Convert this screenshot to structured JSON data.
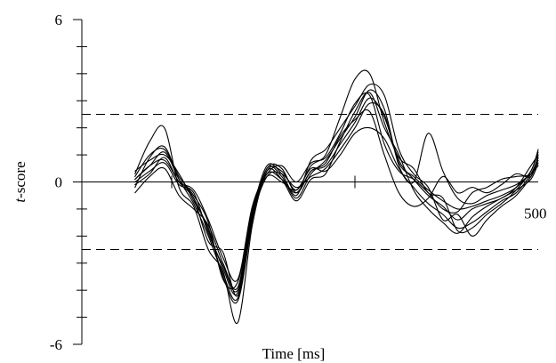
{
  "chart_data": {
    "type": "line",
    "xlabel": "Time [ms]",
    "ylabel_italic": "t",
    "ylabel_rest": "-score",
    "xlim": [
      -50,
      500
    ],
    "ylim": [
      -6,
      6
    ],
    "y_ticks_major": [
      -6,
      0,
      6
    ],
    "y_tick_labels": [
      "-6",
      "0",
      "6"
    ],
    "y_ticks_minor": [
      -5,
      -4,
      -3,
      -2,
      -1,
      1,
      2,
      3,
      4,
      5
    ],
    "x_ticks": [
      0,
      250
    ],
    "x_end_label": "500",
    "thresholds": [
      2.5,
      -2.5
    ],
    "grid": false,
    "series": [
      {
        "x": [
          -50,
          -30,
          -10,
          10,
          30,
          50,
          70,
          90,
          110,
          130,
          150,
          170,
          190,
          210,
          230,
          250,
          270,
          290,
          310,
          330,
          350,
          370,
          390,
          410,
          430,
          450,
          470,
          490,
          500
        ],
        "y": [
          0.1,
          0.6,
          0.8,
          0,
          -0.6,
          -1.8,
          -3.2,
          -4.1,
          -1.2,
          0.3,
          0.1,
          -0.4,
          0.4,
          0.6,
          1.4,
          2.2,
          3.1,
          2.4,
          0.8,
          0.1,
          -0.5,
          -0.9,
          -1.4,
          -1.0,
          -0.8,
          -0.6,
          -0.2,
          0.6,
          1.0
        ]
      },
      {
        "x": [
          -50,
          -30,
          -10,
          10,
          30,
          50,
          70,
          90,
          110,
          130,
          150,
          170,
          190,
          210,
          230,
          250,
          270,
          290,
          310,
          330,
          350,
          370,
          390,
          410,
          430,
          450,
          470,
          490,
          500
        ],
        "y": [
          -0.2,
          0.9,
          1.3,
          0.1,
          -0.8,
          -2.0,
          -3.4,
          -4.3,
          -1.4,
          0.5,
          0.2,
          -0.6,
          0.3,
          0.8,
          1.6,
          2.4,
          3.4,
          2.7,
          0.6,
          -0.2,
          -0.8,
          -1.2,
          -1.7,
          -1.5,
          -1.1,
          -0.7,
          -0.4,
          0.3,
          0.9
        ]
      },
      {
        "x": [
          -50,
          -30,
          -10,
          10,
          30,
          50,
          70,
          90,
          110,
          130,
          150,
          170,
          190,
          210,
          230,
          250,
          270,
          290,
          310,
          330,
          350,
          370,
          390,
          410,
          430,
          450,
          470,
          490,
          500
        ],
        "y": [
          0.3,
          1.5,
          2.0,
          -0.2,
          -0.9,
          -2.5,
          -3.3,
          -5.2,
          -1.6,
          0.4,
          0.4,
          -0.3,
          0.6,
          1.0,
          2.4,
          3.8,
          4.0,
          2.2,
          0.9,
          0.5,
          -0.4,
          -0.6,
          -1.8,
          -1.7,
          -1.2,
          -0.8,
          -0.3,
          0.4,
          1.1
        ]
      },
      {
        "x": [
          -50,
          -30,
          -10,
          10,
          30,
          50,
          70,
          90,
          110,
          130,
          150,
          170,
          190,
          210,
          230,
          250,
          270,
          290,
          310,
          330,
          350,
          370,
          390,
          410,
          430,
          450,
          470,
          490,
          500
        ],
        "y": [
          -0.4,
          0.2,
          0.5,
          -0.5,
          -1.0,
          -1.6,
          -3.0,
          -3.9,
          -1.0,
          0.2,
          0.0,
          -0.3,
          0.5,
          0.4,
          1.0,
          1.8,
          2.0,
          1.6,
          0.5,
          0.0,
          1.8,
          0.4,
          -0.6,
          -0.8,
          -0.5,
          -0.3,
          -0.1,
          0.3,
          0.6
        ]
      },
      {
        "x": [
          -50,
          -30,
          -10,
          10,
          30,
          50,
          70,
          90,
          110,
          130,
          150,
          170,
          190,
          210,
          230,
          250,
          270,
          290,
          310,
          330,
          350,
          370,
          390,
          410,
          430,
          450,
          470,
          490,
          500
        ],
        "y": [
          0.2,
          1.0,
          1.2,
          0.2,
          -0.5,
          -1.5,
          -3.6,
          -3.7,
          -1.1,
          0.6,
          0.3,
          -0.5,
          0.8,
          1.2,
          2.0,
          2.8,
          3.6,
          3.2,
          1.2,
          0.3,
          -0.2,
          -1.4,
          -1.2,
          -2.0,
          -1.4,
          -0.9,
          -0.5,
          0.2,
          0.8
        ]
      },
      {
        "x": [
          -50,
          -30,
          -10,
          10,
          30,
          50,
          70,
          90,
          110,
          130,
          150,
          170,
          190,
          210,
          230,
          250,
          270,
          290,
          310,
          330,
          350,
          370,
          390,
          410,
          430,
          450,
          470,
          490,
          500
        ],
        "y": [
          0.0,
          0.4,
          0.7,
          -0.1,
          -0.4,
          -1.9,
          -3.1,
          -4.0,
          -1.3,
          0.2,
          0.3,
          -0.2,
          0.2,
          0.5,
          1.2,
          2.0,
          2.9,
          2.5,
          0.7,
          0.2,
          -0.3,
          -0.7,
          -1.0,
          -0.9,
          -0.7,
          -0.5,
          -0.2,
          0.4,
          1.2
        ]
      },
      {
        "x": [
          -50,
          -30,
          -10,
          10,
          30,
          50,
          70,
          90,
          110,
          130,
          150,
          170,
          190,
          210,
          230,
          250,
          270,
          290,
          310,
          330,
          350,
          370,
          390,
          410,
          430,
          450,
          470,
          490,
          500
        ],
        "y": [
          0.4,
          0.8,
          1.0,
          0.3,
          -0.7,
          -1.7,
          -3.5,
          -4.4,
          -1.5,
          0.4,
          0.1,
          -0.7,
          0.1,
          0.3,
          1.5,
          2.6,
          3.3,
          2.0,
          1.0,
          -0.3,
          -1.0,
          -1.5,
          -1.9,
          -1.3,
          -0.9,
          -0.6,
          -0.3,
          0.1,
          0.7
        ]
      },
      {
        "x": [
          -50,
          -30,
          -10,
          10,
          30,
          50,
          70,
          90,
          110,
          130,
          150,
          170,
          190,
          210,
          230,
          250,
          270,
          290,
          310,
          330,
          350,
          370,
          390,
          410,
          430,
          450,
          470,
          490,
          500
        ],
        "y": [
          -0.1,
          0.3,
          0.9,
          0.0,
          -0.3,
          -1.4,
          -2.8,
          -3.6,
          -0.9,
          0.3,
          0.6,
          0.0,
          0.7,
          0.9,
          1.8,
          2.9,
          3.2,
          1.4,
          0.4,
          0.1,
          -0.4,
          -1.0,
          -1.1,
          -0.4,
          -0.2,
          0.1,
          0.2,
          0.3,
          0.9
        ]
      },
      {
        "x": [
          -50,
          -30,
          -10,
          10,
          30,
          50,
          70,
          90,
          110,
          130,
          150,
          170,
          190,
          210,
          230,
          250,
          270,
          290,
          310,
          330,
          350,
          370,
          390,
          410,
          430,
          450,
          470,
          490,
          500
        ],
        "y": [
          0.1,
          0.6,
          1.1,
          0.1,
          -0.6,
          -2.2,
          -2.6,
          -4.2,
          -1.2,
          0.5,
          0.5,
          -0.4,
          0.4,
          0.7,
          1.7,
          2.3,
          2.6,
          1.0,
          -0.4,
          -0.9,
          -0.6,
          0.2,
          -0.4,
          -0.2,
          -0.4,
          -0.1,
          0.3,
          0.2,
          1.0
        ]
      }
    ]
  }
}
